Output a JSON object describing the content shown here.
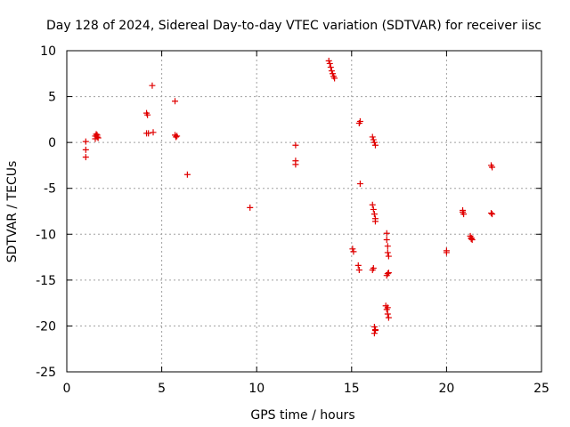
{
  "chart_data": {
    "type": "scatter",
    "title": "Day 128 of 2024, Sidereal Day-to-day VTEC variation (SDTVAR) for receiver iisc",
    "xlabel": "GPS time / hours",
    "ylabel": "SDTVAR / TECUs",
    "xlim": [
      0,
      25
    ],
    "ylim": [
      -25,
      10
    ],
    "xticks": [
      0,
      5,
      10,
      15,
      20,
      25
    ],
    "yticks": [
      10,
      5,
      0,
      -5,
      -10,
      -15,
      -20,
      -25
    ],
    "xtick_labels": [
      "0",
      "5",
      "10",
      "15",
      "20",
      "25"
    ],
    "ytick_labels": [
      "10",
      "5",
      "0",
      "-5",
      "-10",
      "-15",
      "-20",
      "-25"
    ],
    "grid": true,
    "marker": "+",
    "color": "#e00000",
    "series": [
      {
        "name": "SDTVAR",
        "x": [
          1.0,
          1.0,
          1.0,
          1.5,
          1.5,
          1.55,
          1.6,
          1.6,
          1.65,
          4.2,
          4.25,
          4.3,
          4.2,
          4.5,
          4.55,
          5.7,
          5.7,
          5.75,
          5.8,
          6.35,
          9.65,
          12.05,
          12.05,
          12.05,
          13.8,
          13.85,
          13.9,
          13.95,
          14.0,
          14.05,
          14.1,
          15.05,
          15.1,
          15.35,
          15.4,
          15.4,
          15.45,
          15.45,
          16.1,
          16.15,
          16.2,
          16.25,
          16.1,
          16.15,
          16.2,
          16.25,
          16.25,
          16.1,
          16.15,
          16.2,
          16.25,
          16.2,
          16.25,
          16.85,
          16.85,
          16.9,
          16.9,
          16.95,
          16.95,
          16.85,
          16.9,
          16.8,
          16.85,
          16.9,
          16.95,
          16.9,
          20.0,
          20.0,
          20.85,
          20.9,
          20.85,
          21.25,
          21.3,
          21.35,
          21.3,
          22.35,
          22.4,
          22.35,
          22.4
        ],
        "y": [
          0.1,
          -0.8,
          -1.6,
          0.4,
          0.7,
          0.9,
          0.6,
          0.8,
          0.5,
          3.2,
          3.0,
          1.0,
          1.0,
          6.2,
          1.1,
          4.5,
          0.8,
          0.6,
          0.7,
          -3.5,
          -7.1,
          -0.3,
          -2.0,
          -2.4,
          8.9,
          8.6,
          8.2,
          7.8,
          7.5,
          7.2,
          7.0,
          -11.6,
          -11.9,
          -13.4,
          -13.9,
          2.1,
          2.3,
          -4.5,
          0.6,
          0.3,
          0.0,
          -0.3,
          -6.8,
          -7.3,
          -7.8,
          -8.3,
          -8.6,
          -13.9,
          -13.7,
          -20.1,
          -20.4,
          -20.8,
          -20.5,
          -9.9,
          -10.6,
          -11.3,
          -12.0,
          -12.4,
          -14.2,
          -14.5,
          -14.3,
          -17.8,
          -18.2,
          -18.7,
          -19.1,
          -18.0,
          -11.8,
          -12.0,
          -7.4,
          -7.8,
          -7.6,
          -10.2,
          -10.5,
          -10.6,
          -10.4,
          -2.5,
          -2.7,
          -7.7,
          -7.8
        ]
      }
    ]
  }
}
